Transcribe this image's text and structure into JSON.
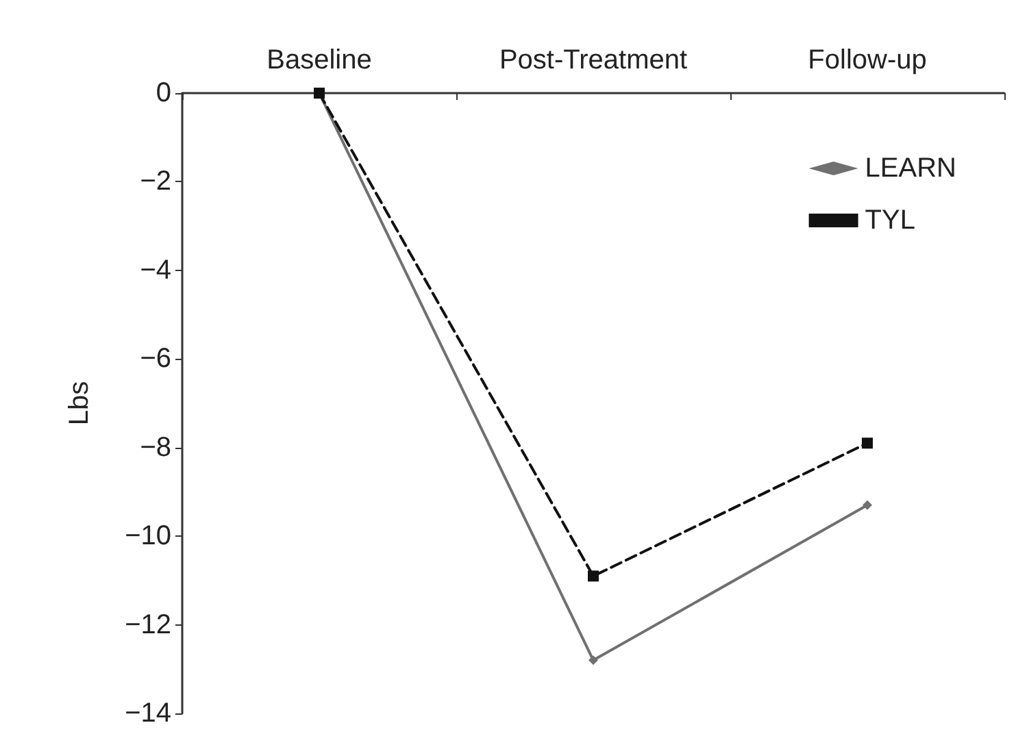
{
  "chart_data": {
    "type": "line",
    "ylabel": "Lbs",
    "categories": [
      "Baseline",
      "Post-Treatment",
      "Follow-up"
    ],
    "ylim": [
      -14,
      0
    ],
    "yticks": [
      0,
      -2,
      -4,
      -6,
      -8,
      -10,
      -12,
      -14
    ],
    "grid": false,
    "legend": "top right",
    "series": [
      {
        "name": "LEARN",
        "color": "#707070",
        "values": [
          0,
          -12.8,
          -9.3
        ],
        "marker": "diamond",
        "line_style": "solid"
      },
      {
        "name": "TYL",
        "color": "#111111",
        "values": [
          0,
          -10.9,
          -7.9
        ],
        "marker": "square",
        "line_style": "dashed"
      }
    ]
  }
}
